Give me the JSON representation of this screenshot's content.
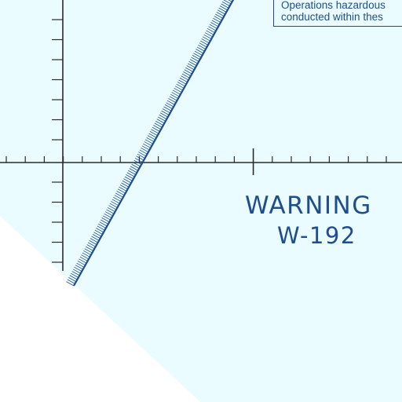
{
  "map": {
    "colors": {
      "area_fill": "#eafcff",
      "outside": "#ffffff",
      "boundary": "#1f4e8c",
      "grid": "#2b2b2b"
    },
    "note": {
      "line1": "Operations hazardous",
      "line2": "conducted within thes"
    },
    "area": {
      "type": "WARNING",
      "designator": "W-192"
    }
  }
}
